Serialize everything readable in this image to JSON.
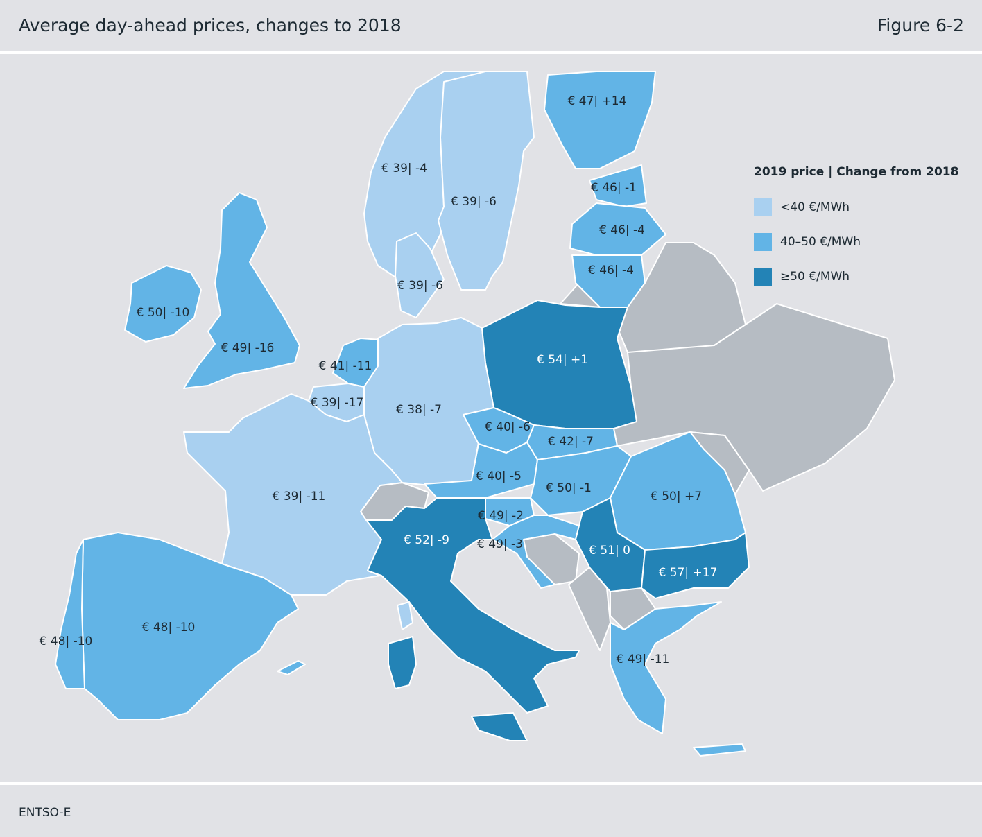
{
  "header": {
    "title": "Average day-ahead prices, changes to 2018",
    "figure": "Figure 6-2"
  },
  "footer": {
    "source": "ENTSO-E"
  },
  "colors": {
    "light": "#a9d0f0",
    "mid": "#62b4e6",
    "dark": "#2383b6",
    "none": "#b6bcc3",
    "background": "#e1e2e6"
  },
  "legend": {
    "title": "2019 price | Change from 2018",
    "items": [
      {
        "label": "<40 €/MWh",
        "color": "#a9d0f0"
      },
      {
        "label": "40–50 €/MWh",
        "color": "#62b4e6"
      },
      {
        "label": "≥50 €/MWh",
        "color": "#2383b6"
      }
    ]
  },
  "regions": [
    {
      "name": "norway",
      "label": "€ 39| -4",
      "tier": "light"
    },
    {
      "name": "sweden",
      "label": "€ 39| -6",
      "tier": "light"
    },
    {
      "name": "finland",
      "label": "€ 47| +14",
      "tier": "mid"
    },
    {
      "name": "estonia",
      "label": "€ 46| -1",
      "tier": "mid"
    },
    {
      "name": "latvia",
      "label": "€ 46| -4",
      "tier": "mid"
    },
    {
      "name": "lithuania",
      "label": "€ 46| -4",
      "tier": "mid"
    },
    {
      "name": "denmark",
      "label": "€ 39| -6",
      "tier": "light"
    },
    {
      "name": "ireland",
      "label": "€ 50| -10",
      "tier": "mid"
    },
    {
      "name": "great-britain",
      "label": "€ 49| -16",
      "tier": "mid"
    },
    {
      "name": "netherlands",
      "label": "€ 41| -11",
      "tier": "mid"
    },
    {
      "name": "belgium",
      "label": "€ 39| -17",
      "tier": "light"
    },
    {
      "name": "germany",
      "label": "€ 38| -7",
      "tier": "light"
    },
    {
      "name": "poland",
      "label": "€ 54| +1",
      "tier": "dark"
    },
    {
      "name": "czechia",
      "label": "€ 40| -6",
      "tier": "mid"
    },
    {
      "name": "slovakia",
      "label": "€ 42| -7",
      "tier": "mid"
    },
    {
      "name": "austria",
      "label": "€ 40| -5",
      "tier": "mid"
    },
    {
      "name": "hungary",
      "label": "€ 50| -1",
      "tier": "mid"
    },
    {
      "name": "romania",
      "label": "€ 50| +7",
      "tier": "mid"
    },
    {
      "name": "france",
      "label": "€ 39| -11",
      "tier": "light"
    },
    {
      "name": "slovenia",
      "label": "€ 49| -2",
      "tier": "mid"
    },
    {
      "name": "croatia",
      "label": "€ 49| -3",
      "tier": "mid"
    },
    {
      "name": "serbia",
      "label": "€ 51| 0",
      "tier": "dark"
    },
    {
      "name": "bulgaria",
      "label": "€ 57| +17",
      "tier": "dark"
    },
    {
      "name": "italy",
      "label": "€ 52| -9",
      "tier": "dark"
    },
    {
      "name": "spain",
      "label": "€ 48| -10",
      "tier": "mid"
    },
    {
      "name": "portugal",
      "label": "€ 48| -10",
      "tier": "mid"
    },
    {
      "name": "greece",
      "label": "€ 49| -11",
      "tier": "mid"
    }
  ]
}
